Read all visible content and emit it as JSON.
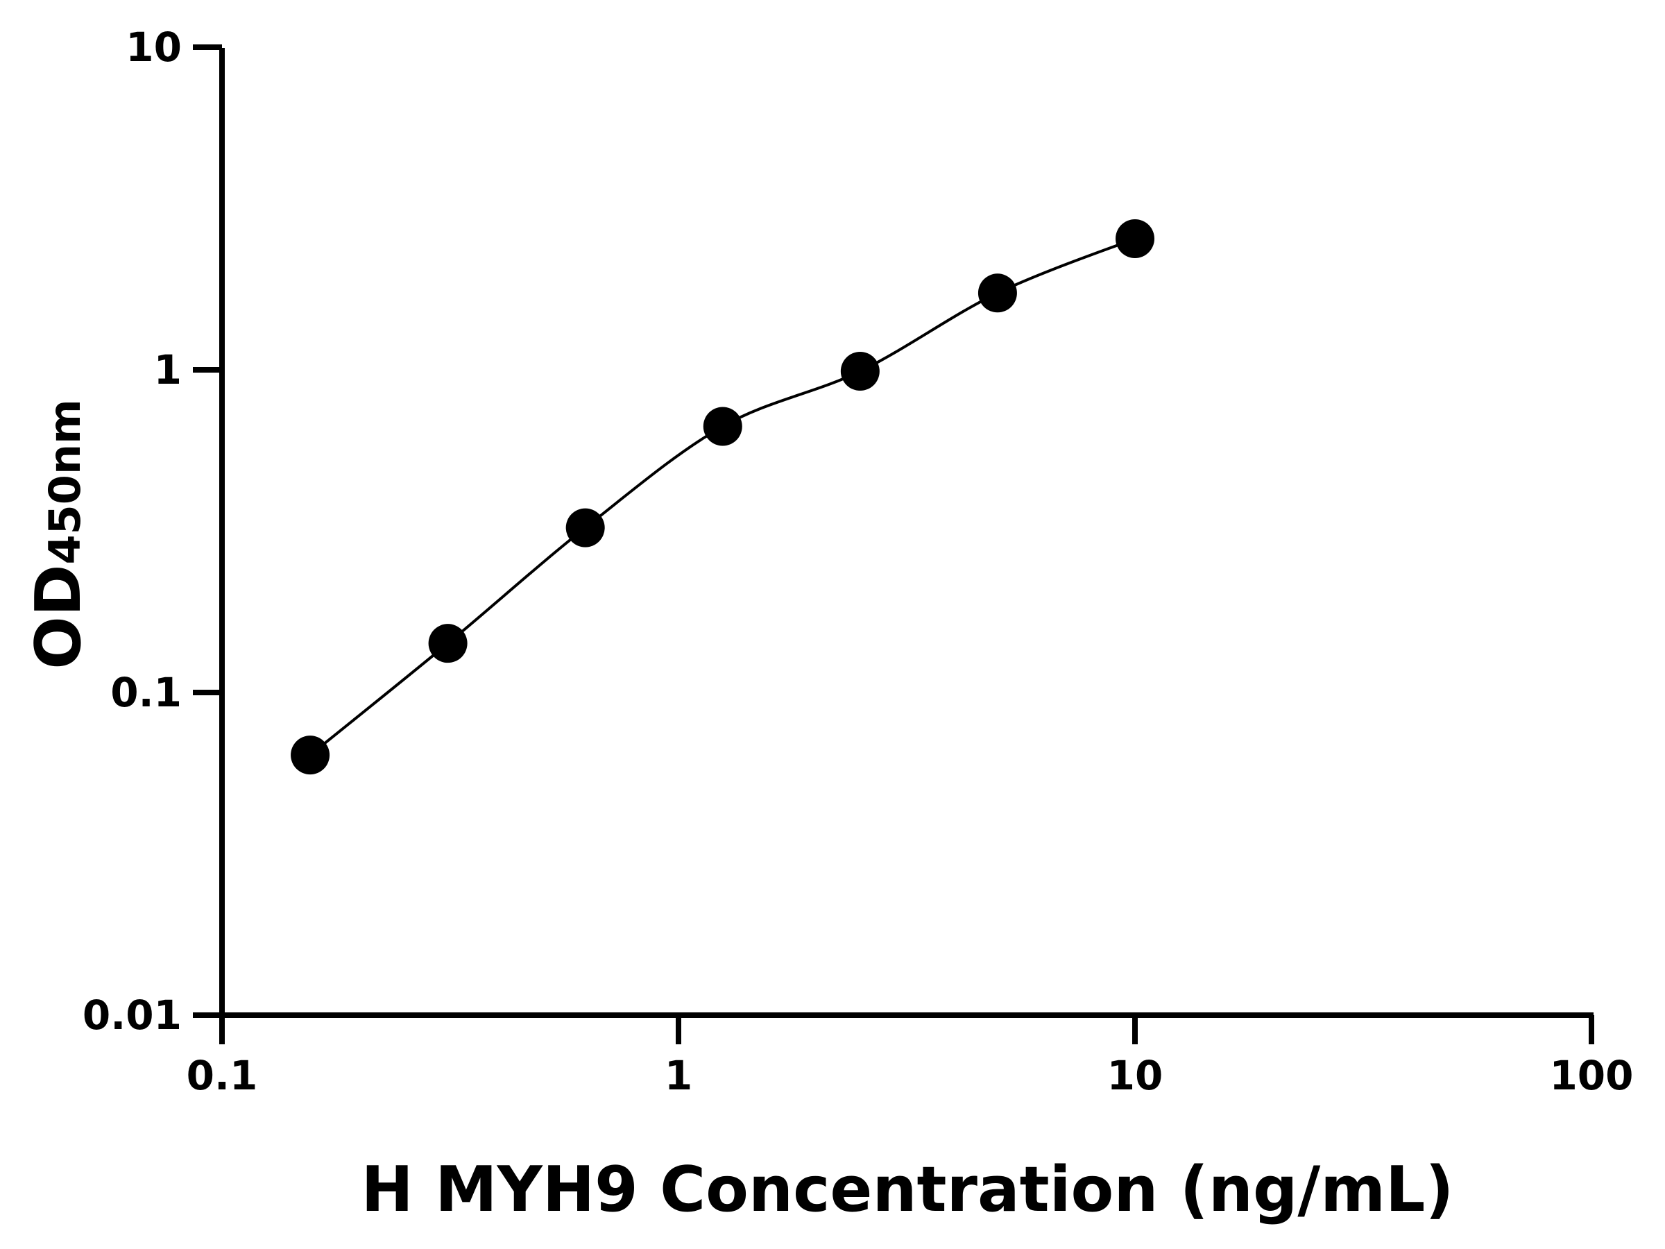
{
  "chart_data": {
    "type": "scatter",
    "title": "",
    "xlabel": "H MYH9 Concentration (ng/mL)",
    "ylabel_main": "OD",
    "ylabel_sub": "450nm",
    "x_scale": "log",
    "y_scale": "log",
    "xlim": [
      0.1,
      100
    ],
    "ylim": [
      0.01,
      10
    ],
    "x_ticks": [
      {
        "v": 0.1,
        "label": "0.1"
      },
      {
        "v": 1,
        "label": "1"
      },
      {
        "v": 10,
        "label": "10"
      },
      {
        "v": 100,
        "label": "100"
      }
    ],
    "y_ticks": [
      {
        "v": 0.01,
        "label": "0.01"
      },
      {
        "v": 0.1,
        "label": "0.1"
      },
      {
        "v": 1,
        "label": "1"
      },
      {
        "v": 10,
        "label": "10"
      }
    ],
    "grid": false,
    "fit_curve": true,
    "color": "#000000",
    "points": [
      {
        "x": 0.156,
        "y": 0.064
      },
      {
        "x": 0.3125,
        "y": 0.142
      },
      {
        "x": 0.625,
        "y": 0.324
      },
      {
        "x": 1.25,
        "y": 0.668
      },
      {
        "x": 2.5,
        "y": 0.99
      },
      {
        "x": 5,
        "y": 1.73
      },
      {
        "x": 10,
        "y": 2.55
      }
    ]
  }
}
